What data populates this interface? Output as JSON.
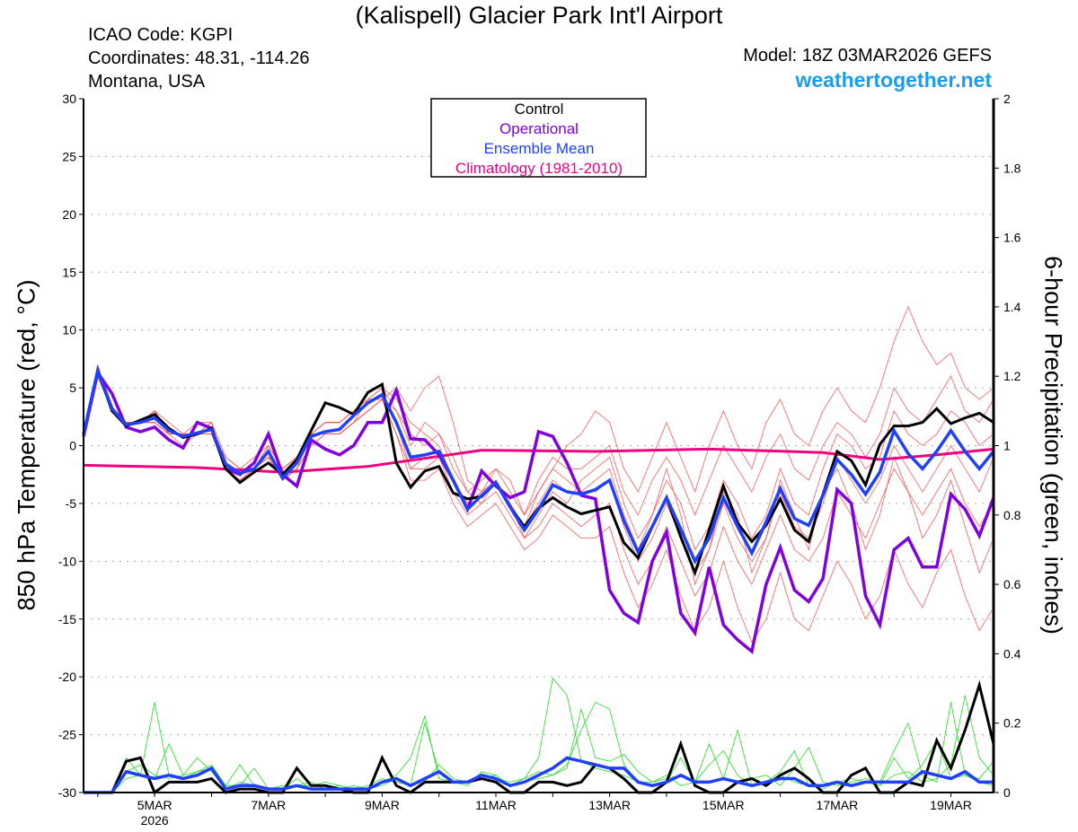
{
  "header": {
    "title": "(Kalispell) Glacier Park Int'l Airport",
    "icao": "ICAO Code: KGPI",
    "coords": "Coordinates: 48.31, -114.26",
    "region": "Montana, USA",
    "model": "Model: 18Z 03MAR2026 GEFS",
    "site": "weathertogether.net"
  },
  "chart_data": {
    "type": "line",
    "title": "(Kalispell) Glacier Park Int'l Airport",
    "ylabel": "850 hPa Temperature (red, °C)",
    "y2label": "6-hour Precipitation (green, inches)",
    "ylim": [
      -30,
      30
    ],
    "y2lim": [
      0,
      2
    ],
    "yticks": [
      -30,
      -25,
      -20,
      -15,
      -10,
      -5,
      0,
      5,
      10,
      15,
      20,
      25,
      30
    ],
    "y2ticks": [
      0,
      0.2,
      0.4,
      0.6,
      0.8,
      1,
      1.2,
      1.4,
      1.6,
      1.8,
      2
    ],
    "y2ticklabels": [
      "0",
      "0.2",
      "0.4",
      "0.6",
      "0.8",
      "1",
      "1.2",
      "1.4",
      "1.6",
      "1.8",
      "2"
    ],
    "x_step_hours": 6,
    "x_start": "03MAR2026 18Z",
    "xticklabels": [
      {
        "day_index": 1.25,
        "label": "5MAR",
        "sub": "2026"
      },
      {
        "day_index": 3.25,
        "label": "7MAR"
      },
      {
        "day_index": 5.25,
        "label": "9MAR"
      },
      {
        "day_index": 7.25,
        "label": "11MAR"
      },
      {
        "day_index": 9.25,
        "label": "13MAR"
      },
      {
        "day_index": 11.25,
        "label": "15MAR"
      },
      {
        "day_index": 13.25,
        "label": "17MAR"
      },
      {
        "day_index": 15.25,
        "label": "19MAR"
      }
    ],
    "grid": true,
    "legend": {
      "position": "top-center",
      "entries": [
        {
          "label": "Control",
          "color": "#000000"
        },
        {
          "label": "Operational",
          "color": "#8000e0"
        },
        {
          "label": "Ensemble Mean",
          "color": "#2040ff"
        },
        {
          "label": "Climatology (1981-2010)",
          "color": "#f0007f"
        }
      ]
    },
    "colors": {
      "member_temp": "#ff4040",
      "member_precip": "#20dd20",
      "control": "#000000",
      "operational": "#8000e0",
      "mean": "#2040ff",
      "climatology": "#f0007f"
    },
    "temperature": {
      "control": [
        1,
        6.5,
        3,
        1.7,
        2.2,
        2.7,
        1.5,
        0.7,
        1,
        1.5,
        -2,
        -3.2,
        -2.3,
        -1.5,
        -2.5,
        -1.2,
        1.3,
        3.7,
        3.3,
        2.7,
        4.6,
        5.3,
        -1.5,
        -3.6,
        -2.2,
        -1.8,
        -4.1,
        -4.6,
        -4.4,
        -3.2,
        -5.3,
        -7,
        -5.4,
        -4.5,
        -5.3,
        -5.9,
        -5.6,
        -5.3,
        -8.4,
        -9.7,
        -7,
        -4.5,
        -7.9,
        -11,
        -7.3,
        -3.5,
        -6.7,
        -8.3,
        -6.9,
        -4.6,
        -7.3,
        -8.3,
        -4.2,
        -0.5,
        -1.3,
        -3.4,
        0.1,
        1.7,
        1.7,
        2,
        3.2,
        1.9,
        2.4,
        2.8,
        2
      ],
      "operational": [
        0.8,
        6.3,
        4.5,
        1.6,
        1.2,
        1.6,
        0.5,
        -0.2,
        2,
        1.5,
        -2,
        -2.5,
        -1.5,
        1,
        -2.5,
        -3.5,
        0.5,
        -0.3,
        -0.8,
        0,
        2,
        2,
        4.8,
        0.6,
        0.5,
        -0.8,
        -3,
        -5.5,
        -2.2,
        -3.5,
        -4.5,
        -4,
        1.2,
        0.8,
        -1.5,
        -4.3,
        -4.6,
        -12.5,
        -14.5,
        -15.3,
        -10,
        -7.5,
        -14.5,
        -16.2,
        -10.5,
        -15.5,
        -16.8,
        -17.8,
        -12,
        -8.8,
        -12.5,
        -13.5,
        -11.5,
        -3.8,
        -5,
        -13,
        -15.5,
        -9,
        -8,
        -10.5,
        -10.5,
        -4.2,
        -5.5,
        -7.8,
        -4.5
      ],
      "mean": [
        1,
        6.5,
        3.2,
        1.8,
        2,
        2.4,
        1.3,
        0.8,
        1.1,
        1.4,
        -1.6,
        -2.4,
        -2,
        -0.5,
        -2.8,
        -1.5,
        0.8,
        1.2,
        1.4,
        2.6,
        3.7,
        4.4,
        2,
        -1,
        -0.8,
        -0.5,
        -3,
        -5.5,
        -4.3,
        -3.2,
        -5.3,
        -7.3,
        -5.5,
        -3.4,
        -4,
        -4.2,
        -3.8,
        -3,
        -6.5,
        -9.2,
        -7,
        -4.5,
        -7.2,
        -10,
        -8,
        -4.5,
        -7,
        -9.3,
        -6.6,
        -3.7,
        -6.3,
        -6.9,
        -4.3,
        -1.2,
        -2.5,
        -4.2,
        -2.3,
        1.3,
        -0.7,
        -2,
        -0.5,
        1.3,
        -0.5,
        -2,
        -0.5
      ],
      "climatology": {
        "index": [
          0,
          8,
          14,
          20,
          28,
          36,
          44,
          52,
          56,
          60,
          64
        ],
        "values": [
          -1.7,
          -1.9,
          -2.3,
          -1.8,
          -0.4,
          -0.5,
          -0.3,
          -0.6,
          -1.2,
          -0.8,
          -0.3
        ]
      },
      "members": [
        [
          1,
          6,
          3,
          2,
          2,
          3,
          1,
          1,
          1,
          2,
          -2,
          -2,
          -2,
          0,
          -2,
          -1,
          1,
          2,
          2,
          3,
          4,
          5,
          3,
          1,
          0,
          1,
          -2,
          -4,
          -3,
          -2,
          -4,
          -6,
          -3,
          -1,
          -2,
          -2,
          -1,
          0,
          -4,
          -6,
          -3,
          -1,
          -3,
          -6,
          -3,
          0,
          -2,
          -4,
          -1,
          1,
          -2,
          -3,
          0,
          2,
          1,
          -1,
          1,
          5,
          3,
          2,
          4,
          6,
          3,
          2,
          4
        ],
        [
          1,
          6,
          3,
          2,
          2,
          2,
          1,
          0,
          1,
          1,
          -2,
          -3,
          -2,
          -1,
          -3,
          -2,
          0,
          1,
          1,
          2,
          3,
          4,
          1,
          -3,
          -3,
          -2,
          -5,
          -7,
          -6,
          -5,
          -7,
          -9,
          -8,
          -6,
          -7,
          -8,
          -8,
          -7,
          -11,
          -14,
          -12,
          -9,
          -13,
          -16,
          -14,
          -10,
          -14,
          -17,
          -15,
          -11,
          -15,
          -16,
          -13,
          -10,
          -12,
          -15,
          -13,
          -9,
          -12,
          -14,
          -11,
          -9,
          -13,
          -16,
          -14
        ],
        [
          1,
          7,
          3,
          2,
          2,
          3,
          2,
          1,
          1,
          1,
          -1,
          -2,
          -2,
          -1,
          -2,
          -1,
          1,
          1,
          1,
          2,
          4,
          4,
          3,
          0,
          2,
          1,
          -1,
          -4,
          -5,
          -3,
          -5,
          -8,
          -6,
          -4,
          -5,
          -3,
          -2,
          -1,
          -5,
          -8,
          -6,
          -3,
          -5,
          -9,
          -7,
          -3,
          -5,
          -8,
          -6,
          -2,
          -5,
          -6,
          -2,
          1,
          0,
          -2,
          -1,
          3,
          1,
          0,
          1,
          3,
          2,
          0,
          1
        ],
        [
          1,
          6,
          3,
          2,
          2,
          2,
          1,
          1,
          1,
          1,
          -2,
          -3,
          -2,
          -1,
          -3,
          -2,
          0,
          1,
          1,
          2,
          3,
          4,
          2,
          -2,
          -2,
          -1,
          -4,
          -6,
          -5,
          -4,
          -6,
          -8,
          -7,
          -5,
          -6,
          -7,
          -6,
          -5,
          -9,
          -12,
          -10,
          -7,
          -10,
          -13,
          -11,
          -7,
          -10,
          -12,
          -9,
          -6,
          -9,
          -10,
          -8,
          -4,
          -6,
          -8,
          -5,
          -2,
          -4,
          -6,
          -4,
          -2,
          -5,
          -7,
          -5
        ],
        [
          1,
          6,
          3,
          2,
          2,
          3,
          1,
          1,
          1,
          2,
          -2,
          -2,
          -2,
          0,
          -2,
          -1,
          1,
          2,
          2,
          3,
          4,
          4,
          5,
          3,
          5,
          6,
          2,
          -3,
          -4,
          -2,
          -3,
          -6,
          -4,
          -2,
          0,
          1,
          3,
          2,
          -2,
          -4,
          -1,
          2,
          -1,
          -4,
          0,
          3,
          0,
          -2,
          2,
          4,
          1,
          0,
          3,
          5,
          3,
          2,
          5,
          9,
          12,
          9,
          7,
          8,
          5,
          4,
          5
        ],
        [
          1,
          6,
          3,
          2,
          2,
          2,
          1,
          1,
          1,
          1,
          -2,
          -3,
          -2,
          -1,
          -3,
          -2,
          1,
          1,
          1,
          2,
          3,
          4,
          1,
          -2,
          -1,
          -1,
          -3,
          -5,
          -4,
          -3,
          -5,
          -7,
          -5,
          -3,
          -4,
          -4,
          -4,
          -3,
          -7,
          -10,
          -8,
          -5,
          -8,
          -11,
          -9,
          -5,
          -8,
          -10,
          -8,
          -4,
          -7,
          -8,
          -5,
          -1,
          -3,
          -5,
          -3,
          0,
          -2,
          -4,
          -2,
          0,
          -2,
          -4,
          -1
        ],
        [
          1,
          6,
          3,
          2,
          2,
          3,
          1,
          1,
          2,
          2,
          -1,
          -2,
          -1,
          0,
          -2,
          -1,
          1,
          2,
          2,
          3,
          4,
          5,
          4,
          2,
          1,
          0,
          -3,
          -5,
          -4,
          -3,
          -5,
          -7,
          -4,
          -2,
          -3,
          -4,
          -3,
          -2,
          -6,
          -9,
          -6,
          -2,
          -6,
          -12,
          -9,
          -4,
          -6,
          -11,
          -8,
          -3,
          -6,
          -9,
          -4,
          -2,
          -5,
          -9,
          -6,
          -1,
          -4,
          -8,
          -6,
          -3,
          -7,
          -11,
          -8
        ]
      ]
    },
    "precipitation": {
      "control": [
        0,
        0,
        0,
        0.09,
        0.1,
        0,
        0.03,
        0.03,
        0.03,
        0.04,
        0,
        0.01,
        0.01,
        0,
        0,
        0.07,
        0.02,
        0.02,
        0.01,
        0,
        0,
        0.1,
        0.02,
        0,
        0.03,
        0.03,
        0.03,
        0.03,
        0.04,
        0.03,
        0,
        0,
        0.03,
        0.03,
        0.02,
        0.03,
        0.08,
        0.07,
        0.04,
        0,
        0,
        0.03,
        0.14,
        0.02,
        0,
        0,
        0.03,
        0.04,
        0.02,
        0.05,
        0.07,
        0.04,
        0,
        0,
        0.05,
        0.07,
        0,
        0,
        0.03,
        0.02,
        0.15,
        0.07,
        0.18,
        0.31,
        0.14
      ],
      "mean": [
        0,
        0,
        0,
        0.06,
        0.05,
        0.04,
        0.05,
        0.04,
        0.05,
        0.07,
        0.01,
        0.02,
        0.02,
        0.01,
        0.01,
        0.02,
        0.01,
        0.01,
        0.01,
        0.01,
        0.01,
        0.03,
        0.04,
        0.02,
        0.04,
        0.06,
        0.03,
        0.03,
        0.05,
        0.04,
        0.02,
        0.03,
        0.05,
        0.07,
        0.1,
        0.09,
        0.08,
        0.07,
        0.07,
        0.03,
        0.02,
        0.03,
        0.05,
        0.03,
        0.03,
        0.04,
        0.03,
        0.02,
        0.03,
        0.04,
        0.04,
        0.02,
        0.02,
        0.03,
        0.02,
        0.03,
        0.03,
        0.03,
        0.03,
        0.06,
        0.05,
        0.04,
        0.06,
        0.03,
        0.03
      ],
      "members": [
        [
          0,
          0,
          0,
          0.04,
          0.05,
          0.26,
          0.05,
          0.04,
          0.06,
          0.07,
          0.02,
          0.08,
          0.02,
          0.01,
          0.01,
          0.04,
          0.01,
          0.01,
          0.02,
          0.01,
          0.01,
          0.02,
          0.04,
          0.02,
          0.2,
          0.06,
          0.03,
          0.03,
          0.04,
          0.05,
          0.02,
          0.04,
          0.1,
          0.33,
          0.28,
          0.09,
          0.07,
          0.06,
          0.05,
          0.03,
          0.02,
          0.03,
          0.1,
          0.03,
          0.08,
          0.12,
          0.05,
          0.02,
          0.03,
          0.05,
          0.03,
          0.02,
          0.02,
          0.03,
          0.02,
          0.03,
          0.02,
          0.1,
          0.04,
          0.08,
          0.15,
          0.04,
          0.05,
          0.03,
          0.02
        ],
        [
          0,
          0,
          0,
          0.1,
          0.05,
          0.04,
          0.14,
          0.05,
          0.06,
          0.08,
          0.02,
          0.02,
          0.07,
          0.01,
          0.02,
          0.02,
          0.03,
          0.01,
          0.01,
          0.02,
          0.01,
          0.03,
          0.05,
          0.1,
          0.22,
          0.04,
          0.03,
          0.02,
          0.06,
          0.05,
          0.02,
          0.03,
          0.04,
          0.05,
          0.08,
          0.18,
          0.26,
          0.24,
          0.08,
          0.03,
          0.03,
          0.05,
          0.02,
          0.03,
          0.03,
          0.04,
          0.18,
          0.02,
          0.03,
          0.06,
          0.12,
          0.02,
          0.01,
          0.03,
          0.04,
          0.03,
          0.02,
          0.05,
          0.06,
          0.03,
          0.04,
          0.08,
          0.28,
          0.1,
          0.05
        ],
        [
          0,
          0,
          0,
          0.06,
          0.08,
          0.05,
          0.04,
          0.05,
          0.1,
          0.06,
          0.01,
          0.03,
          0.02,
          0.01,
          0.01,
          0.02,
          0.02,
          0.03,
          0.02,
          0.01,
          0.02,
          0.04,
          0.03,
          0.02,
          0.03,
          0.08,
          0.04,
          0.03,
          0.05,
          0.04,
          0.03,
          0.04,
          0.06,
          0.05,
          0.07,
          0.24,
          0.1,
          0.09,
          0.11,
          0.06,
          0.03,
          0.04,
          0.05,
          0.03,
          0.14,
          0.04,
          0.03,
          0.04,
          0.05,
          0.02,
          0.07,
          0.13,
          0.03,
          0.02,
          0.03,
          0.04,
          0.03,
          0.12,
          0.2,
          0.05,
          0.03,
          0.26,
          0.05,
          0.04,
          0.09
        ]
      ]
    }
  }
}
